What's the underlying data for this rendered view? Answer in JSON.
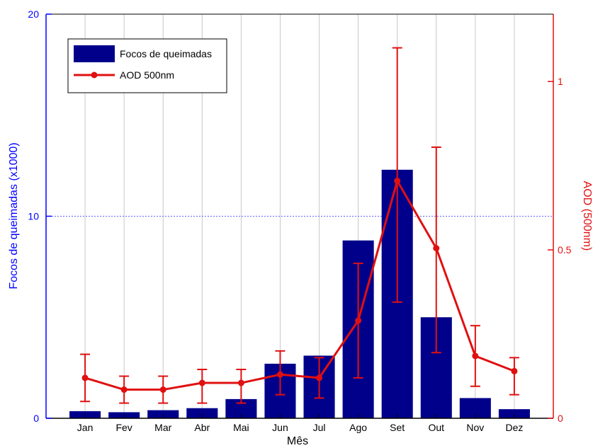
{
  "chart_data": {
    "type": "bar+line",
    "categories": [
      "Jan",
      "Fev",
      "Mar",
      "Abr",
      "Mai",
      "Jun",
      "Jul",
      "Ago",
      "Set",
      "Out",
      "Nov",
      "Dez"
    ],
    "xlabel": "Mês",
    "ylabel_left": "Focos de queimadas (x1000)",
    "ylabel_right": "AOD (500nm)",
    "ylim_left": [
      0,
      20
    ],
    "ylim_right": [
      0,
      1.2
    ],
    "yticks_left": [
      0,
      10,
      20
    ],
    "yticks_right": [
      0,
      0.5,
      1
    ],
    "yticklabels_left": [
      "0",
      "10",
      "20"
    ],
    "yticklabels_right": [
      "0",
      "0.5",
      "1"
    ],
    "grid": "vertical lines at months, horizontal dotted line at left-axis 10",
    "legend_position": "top-left",
    "series": [
      {
        "name": "Focos de queimadas",
        "type": "bar",
        "axis": "left",
        "color": "#00008b",
        "values": [
          0.35,
          0.3,
          0.4,
          0.5,
          0.95,
          2.7,
          3.1,
          8.8,
          12.3,
          5.0,
          1.0,
          0.45
        ]
      },
      {
        "name": "AOD 500nm",
        "type": "line",
        "axis": "right",
        "color": "#e01010",
        "values": [
          0.12,
          0.085,
          0.085,
          0.105,
          0.105,
          0.13,
          0.12,
          0.29,
          0.705,
          0.505,
          0.185,
          0.14
        ],
        "error_low": [
          0.07,
          0.04,
          0.04,
          0.06,
          0.06,
          0.06,
          0.06,
          0.17,
          0.36,
          0.31,
          0.09,
          0.07
        ],
        "error_high": [
          0.07,
          0.04,
          0.04,
          0.04,
          0.04,
          0.07,
          0.06,
          0.17,
          0.395,
          0.3,
          0.09,
          0.04
        ]
      }
    ]
  },
  "colors": {
    "left_axis": "#0000ff",
    "right_axis": "#e01010",
    "grid": "#c8c8c8"
  }
}
